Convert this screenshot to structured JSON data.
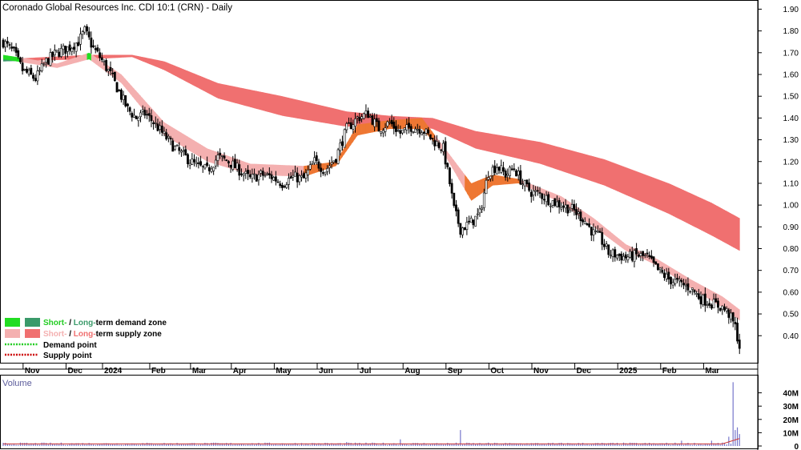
{
  "colors": {
    "short_demand": "#22dd22",
    "long_demand": "#3a9a6a",
    "short_supply": "#f4b0b0",
    "long_supply": "#f07070",
    "warm_zone": "#ee7733",
    "demand_point": "#22cc22",
    "supply_point": "#cc0000",
    "volume": "#7777cc",
    "volume_avg": "#cc3333"
  },
  "chart_data": [
    {
      "type": "candlestick",
      "title": "Coronado Global Resources Inc. CDI 10:1 (CRN) - Daily",
      "ylim": [
        0.32,
        1.92
      ],
      "yticks": [
        "1.90",
        "1.80",
        "1.70",
        "1.60",
        "1.50",
        "1.40",
        "1.30",
        "1.20",
        "1.10",
        "1.00",
        "0.90",
        "0.80",
        "0.70",
        "0.60",
        "0.50",
        "0.40"
      ],
      "xticks": [
        "Nov",
        "Dec",
        "2024",
        "Feb",
        "Mar",
        "Apr",
        "May",
        "Jun",
        "Jul",
        "Aug",
        "Sep",
        "Oct",
        "Nov",
        "Dec",
        "2025",
        "Feb",
        "Mar"
      ],
      "grid": false,
      "legend_position": "bottom-left",
      "legend": [
        {
          "label_a": "Short-",
          "sep": " / ",
          "label_b": "Long-",
          "suffix": "term demand zone"
        },
        {
          "label_a": "Short-",
          "sep": " / ",
          "label_b": "Long-",
          "suffix": "term supply zone"
        },
        {
          "label": "Demand point"
        },
        {
          "label": "Supply point"
        }
      ],
      "price_anchors": [
        [
          0,
          1.75
        ],
        [
          5,
          1.7
        ],
        [
          9,
          1.62
        ],
        [
          12,
          1.6
        ],
        [
          15,
          1.58
        ],
        [
          20,
          1.66
        ],
        [
          25,
          1.7
        ],
        [
          30,
          1.72
        ],
        [
          35,
          1.75
        ],
        [
          38,
          1.8
        ],
        [
          42,
          1.72
        ],
        [
          45,
          1.68
        ],
        [
          50,
          1.6
        ],
        [
          54,
          1.52
        ],
        [
          58,
          1.44
        ],
        [
          62,
          1.4
        ],
        [
          66,
          1.42
        ],
        [
          70,
          1.38
        ],
        [
          75,
          1.32
        ],
        [
          80,
          1.26
        ],
        [
          85,
          1.22
        ],
        [
          90,
          1.18
        ],
        [
          95,
          1.16
        ],
        [
          100,
          1.22
        ],
        [
          105,
          1.2
        ],
        [
          110,
          1.16
        ],
        [
          115,
          1.12
        ],
        [
          120,
          1.14
        ],
        [
          125,
          1.13
        ],
        [
          130,
          1.1
        ],
        [
          135,
          1.13
        ],
        [
          140,
          1.12
        ],
        [
          145,
          1.2
        ],
        [
          150,
          1.16
        ],
        [
          155,
          1.22
        ],
        [
          160,
          1.35
        ],
        [
          165,
          1.4
        ],
        [
          170,
          1.42
        ],
        [
          175,
          1.35
        ],
        [
          180,
          1.38
        ],
        [
          185,
          1.33
        ],
        [
          190,
          1.36
        ],
        [
          195,
          1.35
        ],
        [
          200,
          1.3
        ],
        [
          205,
          1.26
        ],
        [
          208,
          1.1
        ],
        [
          210,
          0.98
        ],
        [
          213,
          0.89
        ],
        [
          218,
          0.92
        ],
        [
          222,
          0.96
        ],
        [
          226,
          1.15
        ],
        [
          230,
          1.18
        ],
        [
          234,
          1.14
        ],
        [
          238,
          1.17
        ],
        [
          242,
          1.1
        ],
        [
          246,
          1.06
        ],
        [
          250,
          1.05
        ],
        [
          255,
          1.02
        ],
        [
          260,
          1.0
        ],
        [
          265,
          0.98
        ],
        [
          270,
          0.94
        ],
        [
          275,
          0.87
        ],
        [
          278,
          0.85
        ],
        [
          282,
          0.78
        ],
        [
          286,
          0.77
        ],
        [
          290,
          0.76
        ],
        [
          295,
          0.77
        ],
        [
          300,
          0.76
        ],
        [
          305,
          0.7
        ],
        [
          310,
          0.66
        ],
        [
          315,
          0.64
        ],
        [
          320,
          0.62
        ],
        [
          325,
          0.57
        ],
        [
          330,
          0.55
        ],
        [
          335,
          0.53
        ],
        [
          338,
          0.5
        ],
        [
          341,
          0.44
        ],
        [
          343,
          0.35
        ]
      ],
      "short_zone_anchors": [
        [
          0,
          1.69,
          1.67
        ],
        [
          25,
          1.65,
          1.63
        ],
        [
          40,
          1.7,
          1.67
        ],
        [
          55,
          1.6,
          1.56
        ],
        [
          75,
          1.38,
          1.32
        ],
        [
          95,
          1.26,
          1.2
        ],
        [
          115,
          1.19,
          1.14
        ],
        [
          140,
          1.18,
          1.13
        ],
        [
          155,
          1.2,
          1.18
        ],
        [
          165,
          1.37,
          1.32
        ],
        [
          180,
          1.39,
          1.35
        ],
        [
          195,
          1.4,
          1.35
        ],
        [
          205,
          1.27,
          1.24
        ],
        [
          218,
          1.1,
          1.02
        ],
        [
          228,
          1.14,
          1.09
        ],
        [
          240,
          1.12,
          1.1
        ],
        [
          260,
          1.04,
          1.01
        ],
        [
          275,
          0.94,
          0.9
        ],
        [
          290,
          0.82,
          0.79
        ],
        [
          305,
          0.75,
          0.72
        ],
        [
          320,
          0.66,
          0.62
        ],
        [
          335,
          0.58,
          0.53
        ],
        [
          343,
          0.52,
          0.47
        ]
      ],
      "long_zone_anchors": [
        [
          0,
          1.67,
          1.66
        ],
        [
          40,
          1.69,
          1.67
        ],
        [
          60,
          1.69,
          1.68
        ],
        [
          75,
          1.66,
          1.62
        ],
        [
          100,
          1.56,
          1.49
        ],
        [
          130,
          1.5,
          1.41
        ],
        [
          160,
          1.43,
          1.36
        ],
        [
          180,
          1.41,
          1.38
        ],
        [
          200,
          1.4,
          1.35
        ],
        [
          220,
          1.34,
          1.26
        ],
        [
          250,
          1.29,
          1.19
        ],
        [
          280,
          1.21,
          1.09
        ],
        [
          310,
          1.1,
          0.96
        ],
        [
          330,
          1.01,
          0.86
        ],
        [
          343,
          0.94,
          0.79
        ]
      ],
      "volume": {
        "label": "Volume",
        "ylim": [
          0,
          50
        ],
        "yticks": [
          "40M",
          "30M",
          "20M",
          "10M",
          "0"
        ],
        "spikes": [
          [
            213,
            12
          ],
          [
            185,
            5
          ],
          [
            160,
            3
          ],
          [
            316,
            4
          ],
          [
            330,
            4
          ],
          [
            338,
            7
          ],
          [
            340,
            48
          ],
          [
            341,
            12
          ],
          [
            342,
            14
          ],
          [
            343,
            9
          ]
        ]
      }
    }
  ]
}
